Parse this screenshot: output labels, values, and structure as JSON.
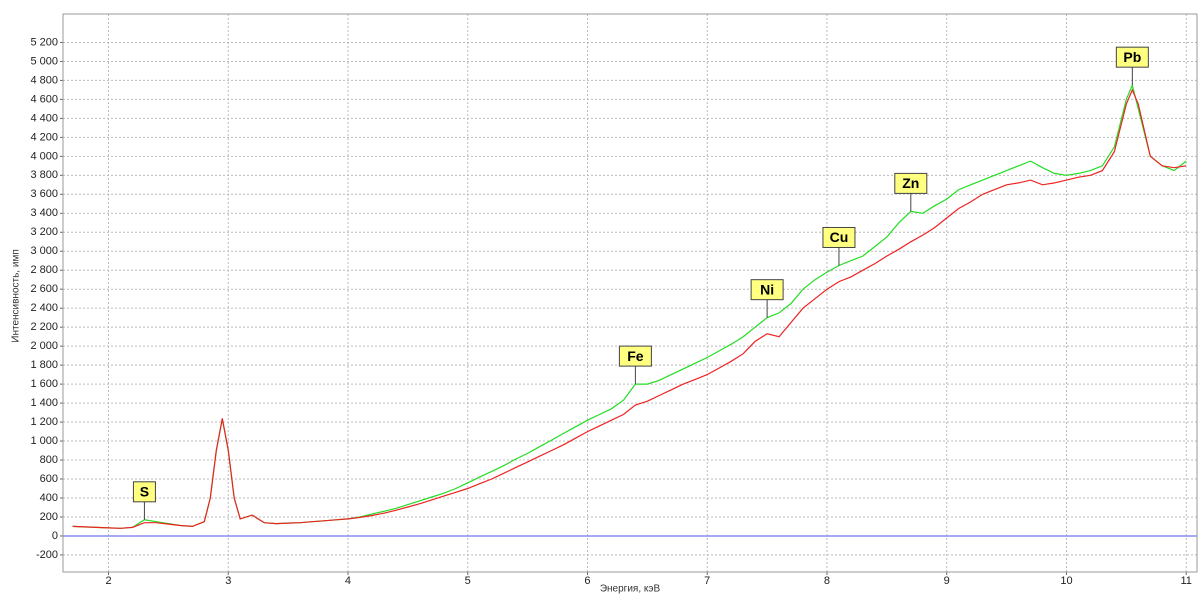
{
  "chart_data": {
    "type": "line",
    "x_label": "Энергия, кэВ",
    "y_label": "Интенсивность, имп",
    "xlim": [
      1.62,
      11.09
    ],
    "ylim": [
      -380,
      5500
    ],
    "xticks": [
      2,
      3,
      4,
      5,
      6,
      7,
      8,
      9,
      10,
      11
    ],
    "yticks": [
      -200,
      0,
      200,
      400,
      600,
      800,
      {
        "value": 1000,
        "label": "1 000"
      },
      {
        "value": 1200,
        "label": "1 200"
      },
      {
        "value": 1400,
        "label": "1 400"
      },
      {
        "value": 1600,
        "label": "1 600"
      },
      {
        "value": 1800,
        "label": "1 800"
      },
      {
        "value": 2000,
        "label": "2 000"
      },
      {
        "value": 2200,
        "label": "2 200"
      },
      {
        "value": 2400,
        "label": "2 400"
      },
      {
        "value": 2600,
        "label": "2 600"
      },
      {
        "value": 2800,
        "label": "2 800"
      },
      {
        "value": 3000,
        "label": "3 000"
      },
      {
        "value": 3200,
        "label": "3 200"
      },
      {
        "value": 3400,
        "label": "3 400"
      },
      {
        "value": 3600,
        "label": "3 600"
      },
      {
        "value": 3800,
        "label": "3 800"
      },
      {
        "value": 4000,
        "label": "4 000"
      },
      {
        "value": 4200,
        "label": "4 200"
      },
      {
        "value": 4400,
        "label": "4 400"
      },
      {
        "value": 4600,
        "label": "4 600"
      },
      {
        "value": 4800,
        "label": "4 800"
      },
      {
        "value": 5000,
        "label": "5 000"
      },
      {
        "value": 5200,
        "label": "5 200"
      }
    ],
    "grid": true,
    "x": [
      1.7,
      1.8,
      1.9,
      2.0,
      2.1,
      2.2,
      2.3,
      2.4,
      2.5,
      2.6,
      2.7,
      2.8,
      2.85,
      2.9,
      2.95,
      3.0,
      3.05,
      3.1,
      3.2,
      3.3,
      3.4,
      3.5,
      3.6,
      3.7,
      3.8,
      3.9,
      4.0,
      4.1,
      4.2,
      4.3,
      4.4,
      4.5,
      4.6,
      4.7,
      4.8,
      4.9,
      5.0,
      5.1,
      5.2,
      5.3,
      5.4,
      5.5,
      5.6,
      5.7,
      5.8,
      5.9,
      6.0,
      6.1,
      6.2,
      6.3,
      6.4,
      6.5,
      6.6,
      6.7,
      6.8,
      6.9,
      7.0,
      7.1,
      7.2,
      7.3,
      7.4,
      7.5,
      7.6,
      7.7,
      7.8,
      7.9,
      8.0,
      8.1,
      8.2,
      8.3,
      8.4,
      8.5,
      8.6,
      8.7,
      8.8,
      8.9,
      9.0,
      9.1,
      9.2,
      9.3,
      9.4,
      9.5,
      9.6,
      9.7,
      9.8,
      9.9,
      10.0,
      10.1,
      10.2,
      10.3,
      10.4,
      10.5,
      10.55,
      10.6,
      10.7,
      10.8,
      10.9,
      11.0
    ],
    "series": [
      {
        "color": "#22dd22",
        "values": [
          100,
          95,
          90,
          85,
          80,
          90,
          170,
          150,
          130,
          110,
          100,
          150,
          400,
          900,
          1230,
          900,
          400,
          180,
          220,
          140,
          130,
          135,
          140,
          150,
          160,
          170,
          180,
          200,
          230,
          260,
          290,
          330,
          370,
          410,
          450,
          500,
          560,
          620,
          680,
          740,
          810,
          870,
          940,
          1010,
          1080,
          1150,
          1220,
          1280,
          1340,
          1430,
          1600,
          1600,
          1640,
          1700,
          1760,
          1820,
          1880,
          1950,
          2020,
          2100,
          2200,
          2300,
          2350,
          2450,
          2600,
          2700,
          2780,
          2850,
          2900,
          2950,
          3050,
          3150,
          3300,
          3420,
          3400,
          3480,
          3550,
          3650,
          3700,
          3750,
          3800,
          3850,
          3900,
          3950,
          3880,
          3820,
          3800,
          3820,
          3850,
          3900,
          4100,
          4600,
          4750,
          4500,
          4000,
          3900,
          3850,
          3950
        ]
      },
      {
        "color": "#ee2222",
        "values": [
          100,
          95,
          90,
          85,
          80,
          90,
          140,
          140,
          125,
          110,
          100,
          150,
          400,
          900,
          1240,
          900,
          400,
          180,
          220,
          140,
          130,
          135,
          140,
          150,
          160,
          170,
          180,
          195,
          215,
          240,
          270,
          305,
          340,
          380,
          420,
          460,
          500,
          550,
          600,
          660,
          720,
          780,
          840,
          900,
          960,
          1030,
          1100,
          1160,
          1220,
          1280,
          1380,
          1420,
          1480,
          1540,
          1600,
          1650,
          1700,
          1770,
          1840,
          1920,
          2050,
          2130,
          2100,
          2250,
          2400,
          2500,
          2600,
          2680,
          2730,
          2800,
          2870,
          2950,
          3020,
          3100,
          3170,
          3250,
          3350,
          3450,
          3520,
          3600,
          3650,
          3700,
          3720,
          3750,
          3700,
          3720,
          3750,
          3780,
          3800,
          3850,
          4050,
          4550,
          4700,
          4550,
          4000,
          3900,
          3880,
          3900
        ]
      }
    ],
    "annotations": [
      {
        "text": "S",
        "x": 2.3
      },
      {
        "text": "Fe",
        "x": 6.4
      },
      {
        "text": "Ni",
        "x": 7.5
      },
      {
        "text": "Cu",
        "x": 8.1
      },
      {
        "text": "Zn",
        "x": 8.7
      },
      {
        "text": "Pb",
        "x": 10.55
      }
    ]
  }
}
